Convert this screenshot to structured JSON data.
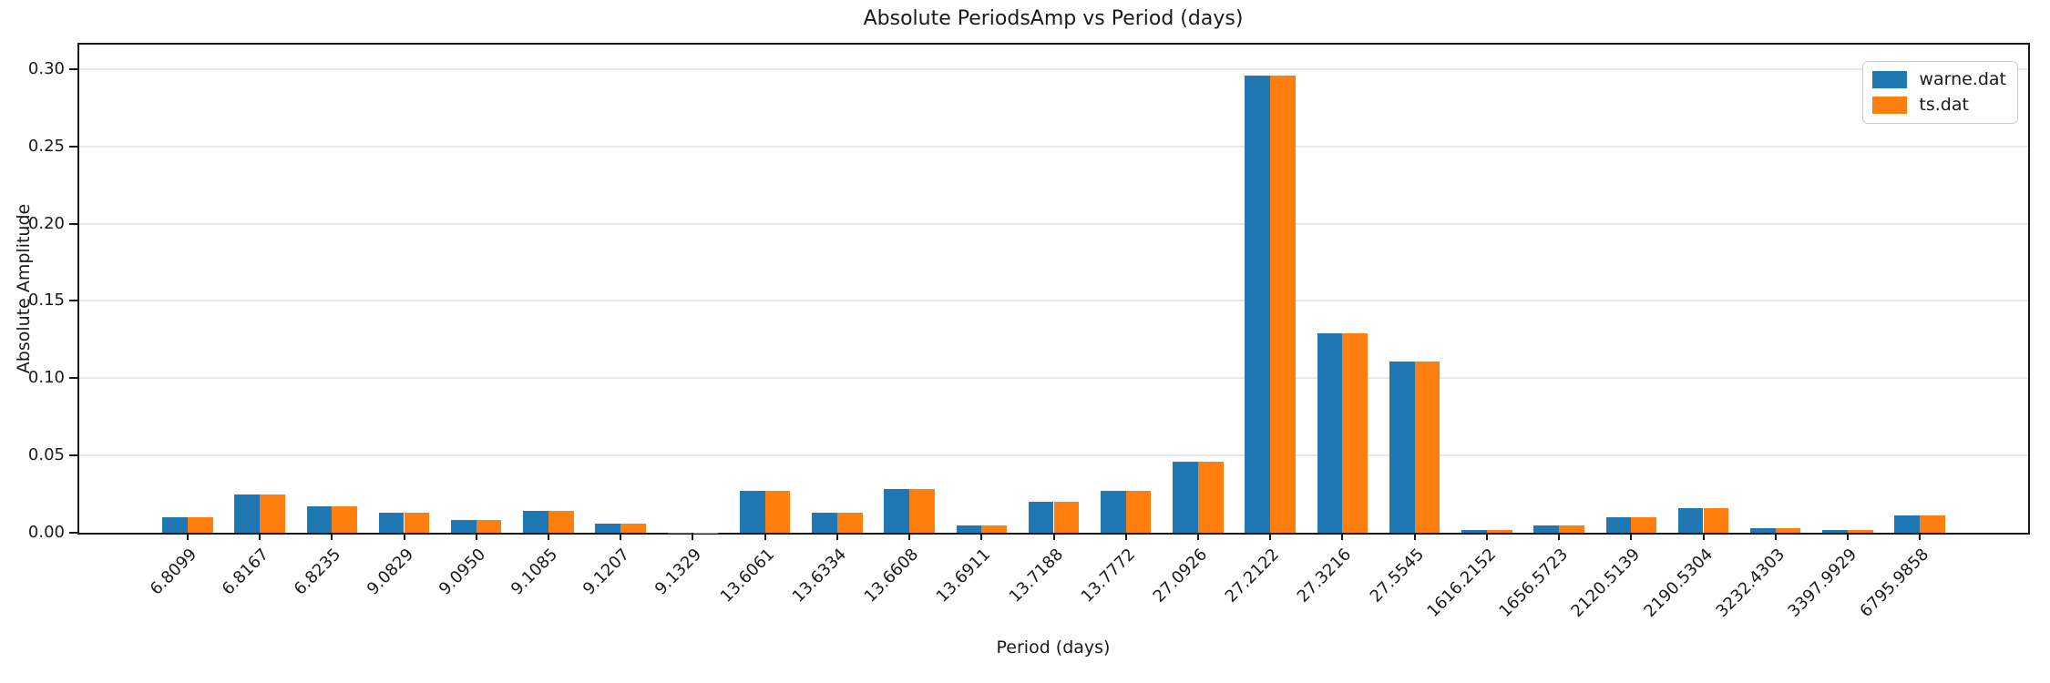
{
  "chart_data": {
    "type": "bar",
    "title": "Absolute PeriodsAmp vs Period (days)",
    "xlabel": "Period (days)",
    "ylabel": "Absolute Amplitude",
    "categories": [
      "6.8099",
      "6.8167",
      "6.8235",
      "9.0829",
      "9.0950",
      "9.1085",
      "9.1207",
      "9.1329",
      "13.6061",
      "13.6334",
      "13.6608",
      "13.6911",
      "13.7188",
      "13.7772",
      "27.0926",
      "27.2122",
      "27.3216",
      "27.5545",
      "1616.2152",
      "1656.5723",
      "2120.5139",
      "2190.5304",
      "3232.4303",
      "3397.9929",
      "6795.9858"
    ],
    "series": [
      {
        "name": "warne.dat",
        "color": "#1f77b4",
        "values": [
          0.01,
          0.025,
          0.017,
          0.013,
          0.008,
          0.014,
          0.006,
          0.0003,
          0.027,
          0.013,
          0.028,
          0.005,
          0.02,
          0.027,
          0.046,
          0.296,
          0.129,
          0.111,
          0.002,
          0.005,
          0.01,
          0.016,
          0.003,
          0.002,
          0.011
        ]
      },
      {
        "name": "ts.dat",
        "color": "#ff7f0e",
        "values": [
          0.01,
          0.025,
          0.017,
          0.013,
          0.008,
          0.014,
          0.006,
          0.0003,
          0.027,
          0.013,
          0.028,
          0.005,
          0.02,
          0.027,
          0.046,
          0.296,
          0.129,
          0.111,
          0.002,
          0.005,
          0.01,
          0.016,
          0.003,
          0.002,
          0.011
        ]
      }
    ],
    "yticks": [
      "0.00",
      "0.05",
      "0.10",
      "0.15",
      "0.20",
      "0.25",
      "0.30"
    ],
    "ylim": [
      0,
      0.3158
    ],
    "grid": "horizontal",
    "legend_position": "upper right",
    "bar_width_fraction": 0.35
  },
  "style": {
    "grid_color": "#e9e9e9",
    "spine_color": "#1a1a1a",
    "text_color": "#1a1a1a",
    "background": "#ffffff"
  }
}
